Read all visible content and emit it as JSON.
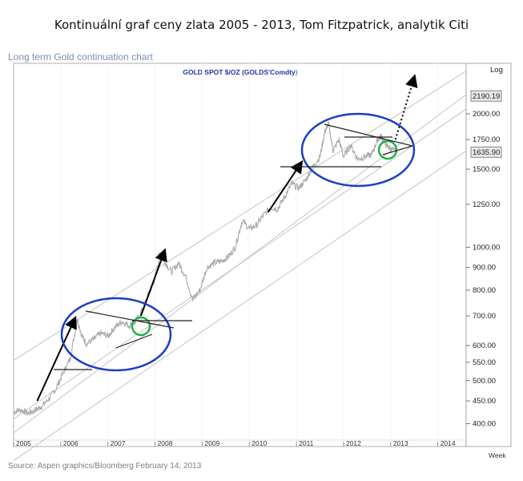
{
  "heading": "Kontinuální graf ceny zlata 2005 - 2013, Tom Fitzpatrick, analytik Citi",
  "subtitle": "Long term Gold continuation chart",
  "source": "Source: Aspen graphics/Bloomberg February 14, 2013",
  "chart_data": {
    "type": "line",
    "title": "GOLD SPOT $/OZ (GOLDS'Comdty)",
    "xlabel": "",
    "ylabel": "",
    "yscale": "log",
    "scale_label": "Log",
    "period_label": "Week",
    "xlim": [
      2005.0,
      2014.6
    ],
    "ylim": [
      355,
      2600
    ],
    "x_ticks": [
      "2005",
      "2006",
      "2007",
      "2008",
      "2009",
      "2010",
      "2011",
      "2012",
      "2013",
      "2014"
    ],
    "y_ticks": [
      400,
      450,
      500,
      550,
      600,
      700,
      800,
      900,
      1000,
      1250,
      1500,
      1750,
      2000
    ],
    "y_tick_labels": [
      "400.00",
      "450.00",
      "500.00",
      "550.00",
      "600.00",
      "700.00",
      "800.00",
      "900.00",
      "1000.00",
      "1250.00",
      "1500.00",
      "1750.00",
      "2000.00"
    ],
    "price_boxes": [
      {
        "label": "2190.19",
        "value": 2190.19
      },
      {
        "label": "1635.90",
        "value": 1635.9
      }
    ],
    "series": [
      {
        "x": [
          2005.0,
          2005.15,
          2005.3,
          2005.45,
          2005.6,
          2005.75,
          2005.9,
          2006.05,
          2006.2,
          2006.35,
          2006.45,
          2006.55,
          2006.7,
          2006.85,
          2007.0,
          2007.15,
          2007.3,
          2007.45,
          2007.6,
          2007.75,
          2007.9,
          2008.0,
          2008.1,
          2008.2,
          2008.35,
          2008.5,
          2008.65,
          2008.8,
          2008.95,
          2009.1,
          2009.25,
          2009.4,
          2009.55,
          2009.7,
          2009.85,
          2010.0,
          2010.15,
          2010.3,
          2010.45,
          2010.6,
          2010.75,
          2010.9,
          2011.05,
          2011.2,
          2011.35,
          2011.5,
          2011.6,
          2011.68,
          2011.78,
          2011.9,
          2012.0,
          2012.15,
          2012.3,
          2012.45,
          2012.6,
          2012.72,
          2012.8,
          2012.9,
          2013.0,
          2013.12
        ],
        "values": [
          425,
          430,
          422,
          428,
          438,
          455,
          480,
          520,
          560,
          690,
          630,
          605,
          620,
          640,
          630,
          660,
          680,
          665,
          680,
          730,
          800,
          850,
          960,
          930,
          880,
          920,
          860,
          760,
          800,
          900,
          920,
          930,
          950,
          1000,
          1150,
          1100,
          1120,
          1180,
          1230,
          1220,
          1300,
          1390,
          1360,
          1420,
          1520,
          1600,
          1820,
          1900,
          1650,
          1750,
          1600,
          1700,
          1580,
          1600,
          1620,
          1750,
          1780,
          1700,
          1670,
          1636
        ]
      }
    ],
    "annotations": {
      "channel_lines": 4,
      "trend_arrows": 4,
      "consolidation_ellipses": 2,
      "breakout_circles": 2,
      "projection": "dotted arrow toward 2190.19"
    }
  }
}
